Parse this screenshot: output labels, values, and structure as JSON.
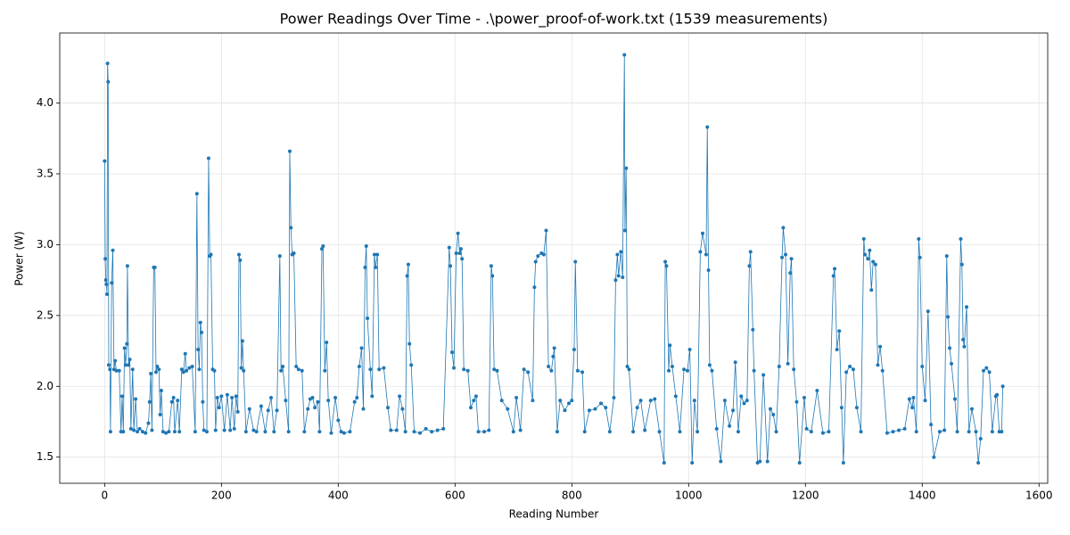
{
  "chart_data": {
    "type": "line",
    "title": "Power Readings Over Time - .\\power_proof-of-work.txt (1539 measurements)",
    "xlabel": "Reading Number",
    "ylabel": "Power (W)",
    "color": "#1f77b4",
    "grid": true,
    "marker": true,
    "xlim": [
      -76.9,
      1614.9
    ],
    "ylim": [
      1.3155,
      4.4945
    ],
    "xticks": [
      0,
      200,
      400,
      600,
      800,
      1000,
      1200,
      1400,
      1600
    ],
    "yticks": [
      1.5,
      {
        "value": 2,
        "label": "2.0"
      },
      2.5,
      {
        "value": 3,
        "label": "3.0"
      },
      3.5,
      {
        "value": 4,
        "label": "4.0"
      }
    ],
    "x": [
      0,
      1,
      2,
      3,
      4,
      5,
      6,
      7,
      9,
      10,
      12,
      14,
      16,
      18,
      20,
      25,
      28,
      30,
      32,
      34,
      36,
      38,
      39,
      41,
      43,
      45,
      48,
      50,
      53,
      56,
      60,
      65,
      70,
      75,
      77,
      79,
      81,
      84,
      86,
      88,
      90,
      93,
      95,
      97,
      100,
      105,
      110,
      115,
      118,
      120,
      125,
      128,
      132,
      135,
      138,
      140,
      145,
      150,
      155,
      158,
      160,
      162,
      164,
      166,
      168,
      170,
      175,
      178,
      180,
      182,
      185,
      188,
      190,
      193,
      196,
      200,
      205,
      210,
      215,
      218,
      222,
      225,
      228,
      230,
      232,
      234,
      236,
      238,
      242,
      248,
      255,
      260,
      268,
      275,
      280,
      285,
      290,
      295,
      300,
      302,
      305,
      310,
      315,
      317,
      319,
      321,
      324,
      328,
      332,
      338,
      342,
      348,
      352,
      356,
      360,
      365,
      368,
      372,
      374,
      377,
      380,
      383,
      388,
      395,
      400,
      405,
      410,
      420,
      428,
      432,
      436,
      440,
      443,
      446,
      448,
      450,
      455,
      458,
      462,
      464,
      467,
      470,
      478,
      485,
      490,
      500,
      505,
      510,
      515,
      518,
      520,
      522,
      525,
      530,
      540,
      550,
      560,
      570,
      580,
      590,
      592,
      595,
      598,
      602,
      605,
      608,
      610,
      612,
      615,
      622,
      627,
      632,
      636,
      640,
      650,
      658,
      662,
      664,
      667,
      672,
      680,
      690,
      700,
      705,
      712,
      718,
      725,
      733,
      736,
      738,
      742,
      748,
      752,
      756,
      760,
      765,
      768,
      770,
      775,
      780,
      788,
      795,
      800,
      804,
      806,
      810,
      818,
      822,
      830,
      840,
      850,
      858,
      865,
      872,
      875,
      878,
      880,
      884,
      887,
      890,
      891,
      893,
      895,
      898,
      905,
      912,
      918,
      925,
      935,
      942,
      950,
      958,
      960,
      962,
      966,
      968,
      972,
      978,
      985,
      992,
      998,
      1002,
      1006,
      1010,
      1015,
      1020,
      1024,
      1030,
      1032,
      1034,
      1036,
      1040,
      1048,
      1055,
      1062,
      1070,
      1076,
      1080,
      1085,
      1090,
      1095,
      1100,
      1104,
      1106,
      1110,
      1112,
      1118,
      1122,
      1128,
      1135,
      1140,
      1145,
      1150,
      1155,
      1160,
      1162,
      1166,
      1170,
      1174,
      1176,
      1180,
      1185,
      1190,
      1198,
      1202,
      1210,
      1220,
      1230,
      1240,
      1248,
      1250,
      1254,
      1258,
      1262,
      1265,
      1270,
      1276,
      1282,
      1288,
      1295,
      1300,
      1302,
      1307,
      1310,
      1313,
      1316,
      1320,
      1324,
      1328,
      1332,
      1340,
      1350,
      1360,
      1370,
      1378,
      1383,
      1385,
      1390,
      1394,
      1396,
      1400,
      1405,
      1410,
      1415,
      1420,
      1430,
      1438,
      1442,
      1444,
      1447,
      1450,
      1456,
      1460,
      1466,
      1468,
      1470,
      1472,
      1476,
      1480,
      1485,
      1492,
      1496,
      1500,
      1505,
      1510,
      1515,
      1520,
      1526,
      1528,
      1532,
      1536,
      1538
    ],
    "values": [
      3.59,
      2.9,
      2.75,
      2.72,
      2.65,
      4.28,
      4.15,
      2.15,
      2.12,
      1.68,
      2.73,
      2.96,
      2.12,
      2.18,
      2.11,
      2.11,
      1.68,
      1.93,
      1.68,
      2.27,
      2.15,
      2.3,
      2.85,
      2.15,
      2.19,
      1.7,
      2.12,
      1.69,
      1.91,
      1.68,
      1.7,
      1.68,
      1.67,
      1.74,
      1.89,
      2.09,
      1.69,
      2.84,
      2.84,
      2.1,
      2.14,
      2.12,
      1.8,
      1.97,
      1.68,
      1.67,
      1.68,
      1.89,
      1.92,
      1.68,
      1.9,
      1.68,
      2.12,
      2.1,
      2.23,
      2.11,
      2.13,
      2.14,
      1.68,
      3.36,
      2.26,
      2.12,
      2.45,
      2.38,
      1.89,
      1.69,
      1.68,
      3.61,
      2.92,
      2.93,
      2.12,
      2.11,
      1.69,
      1.92,
      1.85,
      1.93,
      1.69,
      1.94,
      1.69,
      1.92,
      1.7,
      1.93,
      1.82,
      2.93,
      2.89,
      2.13,
      2.32,
      2.11,
      1.68,
      1.84,
      1.69,
      1.68,
      1.86,
      1.68,
      1.83,
      1.92,
      1.68,
      1.83,
      2.92,
      2.11,
      2.14,
      1.9,
      1.68,
      3.66,
      3.12,
      2.93,
      2.94,
      2.14,
      2.12,
      2.11,
      1.68,
      1.84,
      1.91,
      1.92,
      1.85,
      1.89,
      1.68,
      2.97,
      2.99,
      2.11,
      2.31,
      1.9,
      1.67,
      1.92,
      1.76,
      1.68,
      1.67,
      1.68,
      1.89,
      1.92,
      2.14,
      2.27,
      1.84,
      2.84,
      2.99,
      2.48,
      2.12,
      1.93,
      2.93,
      2.84,
      2.93,
      2.12,
      2.13,
      1.85,
      1.69,
      1.69,
      1.93,
      1.84,
      1.68,
      2.78,
      2.86,
      2.3,
      2.15,
      1.68,
      1.67,
      1.7,
      1.68,
      1.69,
      1.7,
      2.98,
      2.85,
      2.24,
      2.13,
      2.94,
      3.08,
      2.94,
      2.97,
      2.9,
      2.12,
      2.11,
      1.85,
      1.9,
      1.93,
      1.68,
      1.68,
      1.69,
      2.85,
      2.78,
      2.12,
      2.11,
      1.9,
      1.84,
      1.68,
      1.92,
      1.69,
      2.12,
      2.1,
      1.9,
      2.7,
      2.88,
      2.92,
      2.94,
      2.93,
      3.1,
      2.14,
      2.11,
      2.21,
      2.27,
      1.68,
      1.9,
      1.83,
      1.88,
      1.9,
      2.26,
      2.88,
      2.11,
      2.1,
      1.68,
      1.83,
      1.84,
      1.88,
      1.85,
      1.68,
      1.92,
      2.75,
      2.93,
      2.78,
      2.95,
      2.77,
      4.34,
      3.1,
      3.54,
      2.14,
      2.12,
      1.68,
      1.85,
      1.9,
      1.69,
      1.9,
      1.91,
      1.68,
      1.46,
      2.88,
      2.85,
      2.11,
      2.29,
      2.14,
      1.93,
      1.68,
      2.12,
      2.11,
      2.26,
      1.46,
      1.9,
      1.68,
      2.95,
      3.08,
      2.93,
      3.83,
      2.82,
      2.15,
      2.11,
      1.7,
      1.47,
      1.9,
      1.72,
      1.83,
      2.17,
      1.68,
      1.93,
      1.88,
      1.9,
      2.85,
      2.95,
      2.4,
      2.11,
      1.46,
      1.47,
      2.08,
      1.47,
      1.84,
      1.8,
      1.68,
      2.14,
      2.91,
      3.12,
      2.93,
      2.16,
      2.8,
      2.9,
      2.12,
      1.89,
      1.46,
      1.92,
      1.7,
      1.68,
      1.97,
      1.67,
      1.68,
      2.78,
      2.83,
      2.26,
      2.39,
      1.85,
      1.46,
      2.1,
      2.14,
      2.12,
      1.85,
      1.68,
      3.04,
      2.93,
      2.9,
      2.96,
      2.68,
      2.88,
      2.86,
      2.15,
      2.28,
      2.11,
      1.67,
      1.68,
      1.69,
      1.7,
      1.91,
      1.85,
      1.92,
      1.68,
      3.04,
      2.91,
      2.14,
      1.9,
      2.53,
      1.73,
      1.5,
      1.68,
      1.69,
      2.92,
      2.49,
      2.27,
      2.16,
      1.91,
      1.68,
      3.04,
      2.86,
      2.33,
      2.28,
      2.56,
      1.68,
      1.84,
      1.68,
      1.46,
      1.63,
      2.11,
      2.13,
      2.1,
      1.68,
      1.93,
      1.94,
      1.68,
      1.68,
      2.0
    ]
  }
}
